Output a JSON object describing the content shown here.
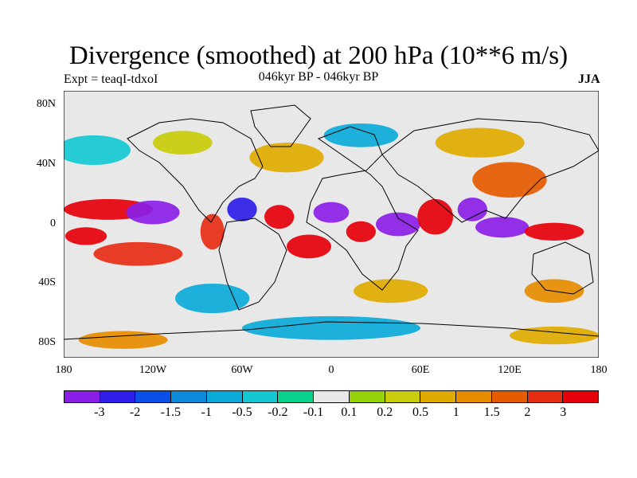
{
  "title": "Divergence (smoothed) at 200 hPa (10**6 m/s)",
  "left_label": "Expt = teaqI-tdxoI",
  "center_label": "046kyr BP - 046kyr BP",
  "right_label": "JJA",
  "latitude_labels": [
    "80N",
    "40N",
    "0",
    "40S",
    "80S"
  ],
  "longitude_labels": [
    "180",
    "120W",
    "60W",
    "0",
    "60E",
    "120E",
    "180"
  ],
  "colorbar": {
    "colors": [
      "#8a1ee6",
      "#2e1ee8",
      "#0a50e6",
      "#0a8ad8",
      "#0aaad8",
      "#14c8d2",
      "#0ad28c",
      "#e8e8e8",
      "#96d20a",
      "#c8cc0a",
      "#e0aa00",
      "#e68c00",
      "#e65a00",
      "#e62d14",
      "#e6000a"
    ],
    "labels": [
      "-3",
      "-2",
      "-1.5",
      "-1",
      "-0.5",
      "-0.2",
      "-0.1",
      "0.1",
      "0.2",
      "0.5",
      "1",
      "1.5",
      "2",
      "3"
    ]
  },
  "map": {
    "background_color": "#e8e8e8",
    "blobs": [
      {
        "lon": -150,
        "lat": 10,
        "rx": 30,
        "ry": 7,
        "level": 14
      },
      {
        "lon": -120,
        "lat": 8,
        "rx": 18,
        "ry": 8,
        "level": 0
      },
      {
        "lon": -130,
        "lat": -20,
        "rx": 30,
        "ry": 8,
        "level": 13
      },
      {
        "lon": -165,
        "lat": -8,
        "rx": 14,
        "ry": 6,
        "level": 14
      },
      {
        "lon": -80,
        "lat": -5,
        "rx": 8,
        "ry": 12,
        "level": 13
      },
      {
        "lon": -60,
        "lat": 10,
        "rx": 10,
        "ry": 8,
        "level": 1
      },
      {
        "lon": -35,
        "lat": 5,
        "rx": 10,
        "ry": 8,
        "level": 14
      },
      {
        "lon": -15,
        "lat": -15,
        "rx": 15,
        "ry": 8,
        "level": 14
      },
      {
        "lon": 0,
        "lat": 8,
        "rx": 12,
        "ry": 7,
        "level": 0
      },
      {
        "lon": 20,
        "lat": -5,
        "rx": 10,
        "ry": 7,
        "level": 14
      },
      {
        "lon": 45,
        "lat": 0,
        "rx": 15,
        "ry": 8,
        "level": 0
      },
      {
        "lon": 70,
        "lat": 5,
        "rx": 12,
        "ry": 12,
        "level": 14
      },
      {
        "lon": 95,
        "lat": 10,
        "rx": 10,
        "ry": 8,
        "level": 0
      },
      {
        "lon": 115,
        "lat": -2,
        "rx": 18,
        "ry": 7,
        "level": 0
      },
      {
        "lon": 150,
        "lat": -5,
        "rx": 20,
        "ry": 6,
        "level": 14
      },
      {
        "lon": 120,
        "lat": 30,
        "rx": 25,
        "ry": 12,
        "level": 12
      },
      {
        "lon": -30,
        "lat": 45,
        "rx": 25,
        "ry": 10,
        "level": 10
      },
      {
        "lon": 100,
        "lat": 55,
        "rx": 30,
        "ry": 10,
        "level": 10
      },
      {
        "lon": -160,
        "lat": 50,
        "rx": 25,
        "ry": 10,
        "level": 5
      },
      {
        "lon": 20,
        "lat": 60,
        "rx": 25,
        "ry": 8,
        "level": 4
      },
      {
        "lon": -100,
        "lat": 55,
        "rx": 20,
        "ry": 8,
        "level": 9
      },
      {
        "lon": 40,
        "lat": -45,
        "rx": 25,
        "ry": 8,
        "level": 10
      },
      {
        "lon": -80,
        "lat": -50,
        "rx": 25,
        "ry": 10,
        "level": 4
      },
      {
        "lon": 150,
        "lat": -45,
        "rx": 20,
        "ry": 8,
        "level": 11
      },
      {
        "lon": 0,
        "lat": -70,
        "rx": 60,
        "ry": 8,
        "level": 4
      },
      {
        "lon": 150,
        "lat": -75,
        "rx": 30,
        "ry": 6,
        "level": 10
      },
      {
        "lon": -140,
        "lat": -78,
        "rx": 30,
        "ry": 6,
        "level": 11
      }
    ]
  }
}
